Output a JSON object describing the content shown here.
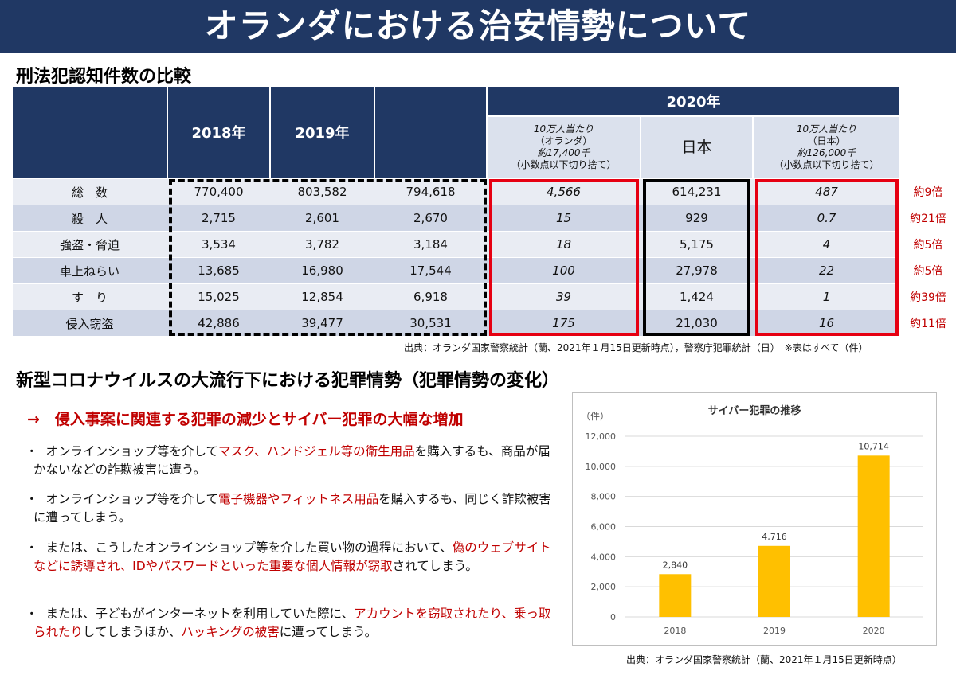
{
  "title": "オランダにおける治安情勢について",
  "section1_title": "刑法犯認知件数の比較",
  "table": {
    "header_2018": "2018年",
    "header_2019": "2019年",
    "header_2020": "2020年",
    "sub_nl_per": [
      "10万人当たり",
      "（オランダ）",
      "約17,400千",
      "（小数点以下切り捨て）"
    ],
    "sub_japan": "日本",
    "sub_jp_per": [
      "10万人当たり",
      "（日本）",
      "約126,000千",
      "（小数点以下切り捨て）"
    ],
    "rows": [
      {
        "label": "総　数",
        "y2018": "770,400",
        "y2019": "803,582",
        "y2020": "794,618",
        "nl_per": "4,566",
        "japan": "614,231",
        "jp_per": "487",
        "ratio": "約9倍"
      },
      {
        "label": "殺　人",
        "y2018": "2,715",
        "y2019": "2,601",
        "y2020": "2,670",
        "nl_per": "15",
        "japan": "929",
        "jp_per": "0.7",
        "ratio": "約21倍"
      },
      {
        "label": "強盗・脅迫",
        "y2018": "3,534",
        "y2019": "3,782",
        "y2020": "3,184",
        "nl_per": "18",
        "japan": "5,175",
        "jp_per": "4",
        "ratio": "約5倍"
      },
      {
        "label": "車上ねらい",
        "y2018": "13,685",
        "y2019": "16,980",
        "y2020": "17,544",
        "nl_per": "100",
        "japan": "27,978",
        "jp_per": "22",
        "ratio": "約5倍"
      },
      {
        "label": "す　り",
        "y2018": "15,025",
        "y2019": "12,854",
        "y2020": "6,918",
        "nl_per": "39",
        "japan": "1,424",
        "jp_per": "1",
        "ratio": "約39倍"
      },
      {
        "label": "侵入窃盗",
        "y2018": "42,886",
        "y2019": "39,477",
        "y2020": "30,531",
        "nl_per": "175",
        "japan": "21,030",
        "jp_per": "16",
        "ratio": "約11倍"
      }
    ],
    "source": "出典：オランダ国家警察統計（蘭、2021年１月15日更新時点），警察庁犯罪統計（日）　※表はすべて（件）"
  },
  "section2_title": "新型コロナウイルスの大流行下における犯罪情勢（犯罪情勢の変化）",
  "headline": "→　侵入事案に関連する犯罪の減少とサイバー犯罪の大幅な増加",
  "bullets": [
    {
      "dot": "・",
      "parts": [
        {
          "t": "　オンラインショップ等を介して",
          "red": false
        },
        {
          "t": "マスク、ハンドジェル等の衛生用品",
          "red": true
        },
        {
          "t": "を購入するも、商品が届かないなどの詐欺被害に遭う。",
          "red": false
        }
      ]
    },
    {
      "dot": "・",
      "parts": [
        {
          "t": "　オンラインショップ等を介して",
          "red": false
        },
        {
          "t": "電子機器やフィットネス用品",
          "red": true
        },
        {
          "t": "を購入するも、同じく詐欺被害に遭ってしまう。",
          "red": false
        }
      ]
    },
    {
      "dot": "・",
      "parts": [
        {
          "t": "　または、こうしたオンラインショップ等を介した買い物の過程において、",
          "red": false
        },
        {
          "t": "偽のウェブサイトなどに誘導され、IDやパスワードといった重要な個人情報が窃取",
          "red": true
        },
        {
          "t": "されてしまう。",
          "red": false
        }
      ]
    },
    {
      "dot": "・",
      "parts": [
        {
          "t": "　または、子どもがインターネットを利用していた際に、",
          "red": false
        },
        {
          "t": "アカウントを窃取されたり、乗っ取られたり",
          "red": true
        },
        {
          "t": "してしまうほか、",
          "red": false
        },
        {
          "t": "ハッキングの被害",
          "red": true
        },
        {
          "t": "に遭ってしまう。",
          "red": false
        }
      ]
    }
  ],
  "chart_data": {
    "type": "bar",
    "title": "サイバー犯罪の推移",
    "unit_label": "（件）",
    "categories": [
      "2018",
      "2019",
      "2020"
    ],
    "values": [
      2840,
      4716,
      10714
    ],
    "value_labels": [
      "2,840",
      "4,716",
      "10,714"
    ],
    "yticks": [
      0,
      2000,
      4000,
      6000,
      8000,
      10000,
      12000
    ],
    "ytick_labels": [
      "0",
      "2,000",
      "4,000",
      "6,000",
      "8,000",
      "10,000",
      "12,000"
    ],
    "ylim": [
      0,
      12000
    ],
    "bar_color": "#ffc000",
    "grid": true
  },
  "chart_source": "出典：オランダ国家警察統計（蘭、2021年１月15日更新時点）",
  "colors": {
    "navy": "#203864",
    "light_band": "#dbe1ed",
    "accent_red": "#c00000",
    "box_red": "#e60012"
  }
}
